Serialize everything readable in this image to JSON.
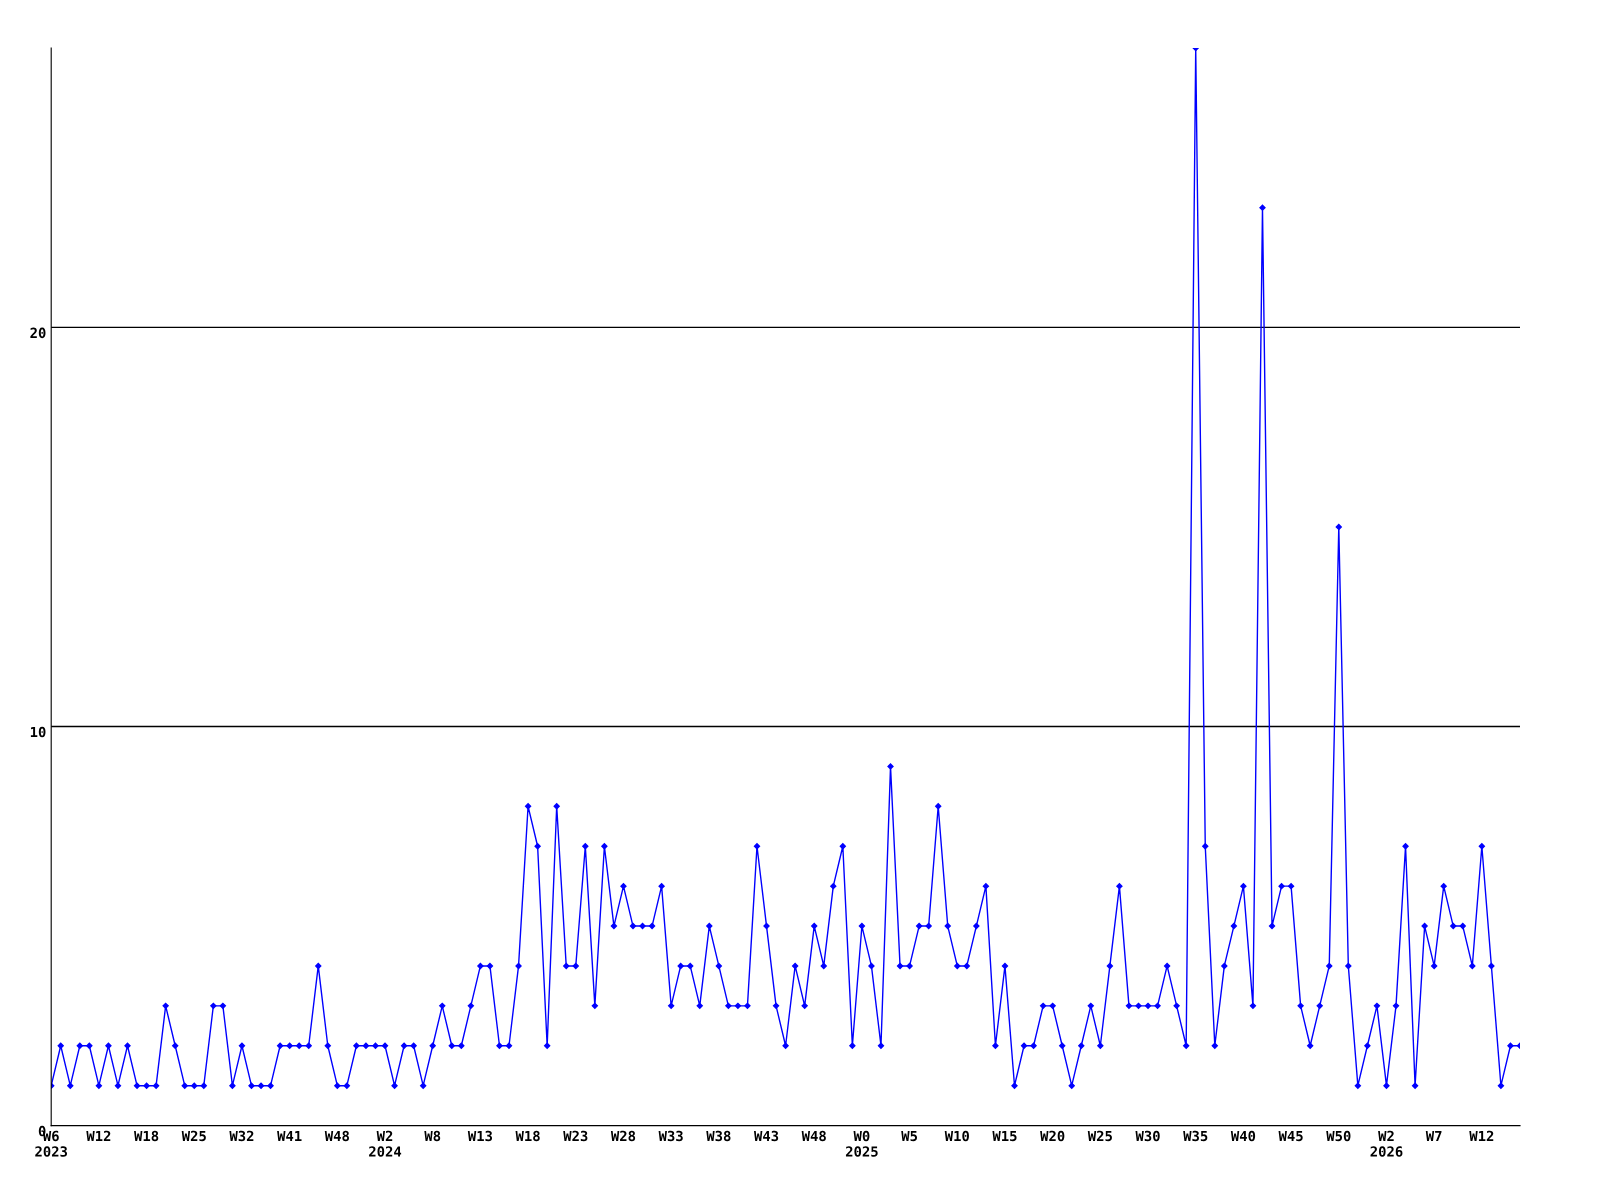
{
  "chart_data": {
    "type": "line",
    "categories": [
      "W6\n2023",
      null,
      null,
      null,
      null,
      "W12",
      null,
      null,
      null,
      null,
      "W18",
      null,
      null,
      null,
      null,
      "W25",
      null,
      null,
      null,
      null,
      "W32",
      null,
      null,
      null,
      null,
      "W41",
      null,
      null,
      null,
      null,
      "W48",
      null,
      null,
      null,
      null,
      "W2\n2024",
      null,
      null,
      null,
      null,
      "W8",
      null,
      null,
      null,
      null,
      "W13",
      null,
      null,
      null,
      null,
      "W18",
      null,
      null,
      null,
      null,
      "W23",
      null,
      null,
      null,
      null,
      "W28",
      null,
      null,
      null,
      null,
      "W33",
      null,
      null,
      null,
      null,
      "W38",
      null,
      null,
      null,
      null,
      "W43",
      null,
      null,
      null,
      null,
      "W48",
      null,
      null,
      null,
      null,
      "W0\n2025",
      null,
      null,
      null,
      null,
      "W5",
      null,
      null,
      null,
      null,
      "W10",
      null,
      null,
      null,
      null,
      "W15",
      null,
      null,
      null,
      null,
      "W20",
      null,
      null,
      null,
      null,
      "W25",
      null,
      null,
      null,
      null,
      "W30",
      null,
      null,
      null,
      null,
      "W35",
      null,
      null,
      null,
      null,
      "W40",
      null,
      null,
      null,
      null,
      "W45",
      null,
      null,
      null,
      null,
      "W50",
      null,
      null,
      null,
      null,
      "W2\n2026",
      null,
      null,
      null,
      null,
      "W7",
      null,
      null,
      null,
      null,
      "W12",
      null,
      null,
      null,
      null
    ],
    "series": [
      {
        "color": "#0000ff",
        "values": [
          1,
          2,
          1,
          2,
          2,
          1,
          2,
          1,
          2,
          1,
          1,
          1,
          3,
          2,
          1,
          1,
          1,
          3,
          3,
          1,
          2,
          1,
          1,
          1,
          2,
          2,
          2,
          2,
          4,
          2,
          1,
          1,
          2,
          2,
          2,
          2,
          1,
          2,
          2,
          1,
          2,
          3,
          2,
          2,
          3,
          4,
          4,
          2,
          2,
          4,
          8,
          7,
          2,
          8,
          4,
          4,
          7,
          3,
          7,
          5,
          6,
          5,
          5,
          5,
          6,
          3,
          4,
          4,
          3,
          5,
          4,
          3,
          3,
          3,
          7,
          5,
          3,
          2,
          4,
          3,
          5,
          4,
          6,
          7,
          2,
          5,
          4,
          2,
          9,
          4,
          4,
          5,
          5,
          8,
          5,
          4,
          4,
          5,
          6,
          2,
          4,
          1,
          2,
          2,
          3,
          3,
          2,
          1,
          2,
          3,
          2,
          4,
          6,
          3,
          3,
          3,
          3,
          4,
          3,
          2,
          27,
          7,
          2,
          4,
          5,
          6,
          3,
          23,
          5,
          6,
          6,
          3,
          2,
          3,
          4,
          15,
          4,
          1,
          2,
          3,
          1,
          3,
          7,
          1,
          5,
          4,
          6,
          5,
          5,
          4,
          7,
          4,
          1,
          2,
          2
        ]
      }
    ],
    "ylim": [
      0,
      27
    ],
    "yticks": [
      0,
      10,
      20
    ],
    "grid": "y",
    "marker": "diamond",
    "line_style": "solid",
    "legend": false
  }
}
